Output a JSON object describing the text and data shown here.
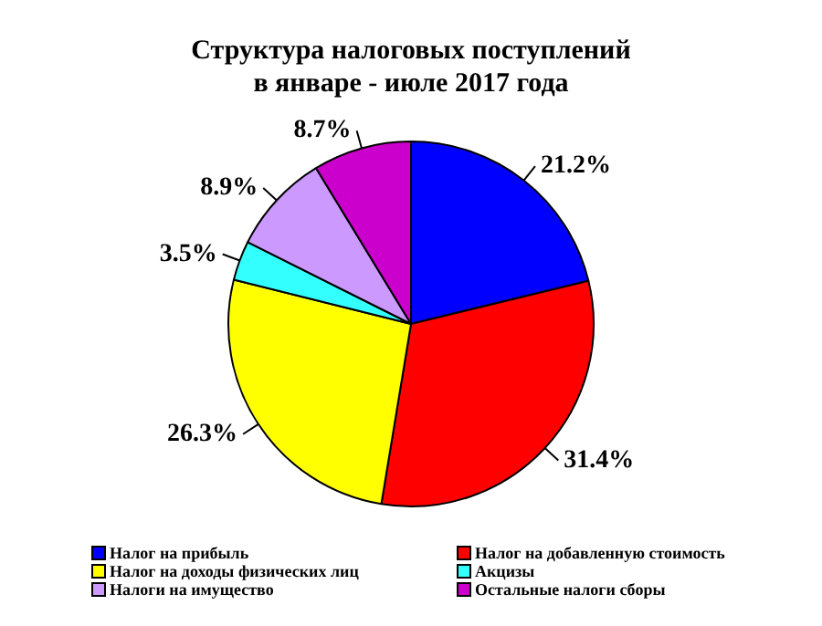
{
  "chart_data": {
    "type": "pie",
    "title": "Структура налоговых поступлений\nв январе - июле 2017 года",
    "categories": [
      "Налог  на прибыль",
      "Налог на добавленную стоимость",
      "Налог на доходы  физических лиц",
      "Акцизы",
      "Налоги на имущество",
      "Остальные налоги сборы"
    ],
    "values": [
      21.2,
      31.4,
      26.3,
      3.5,
      8.9,
      8.7
    ],
    "value_labels": [
      "21.2%",
      "31.4%",
      "26.3%",
      "3.5%",
      "8.9%",
      "8.7%"
    ],
    "colors": [
      "#0000ff",
      "#ff0000",
      "#ffff00",
      "#33ffff",
      "#cc99ff",
      "#cc00cc"
    ],
    "legend": "bottom"
  }
}
